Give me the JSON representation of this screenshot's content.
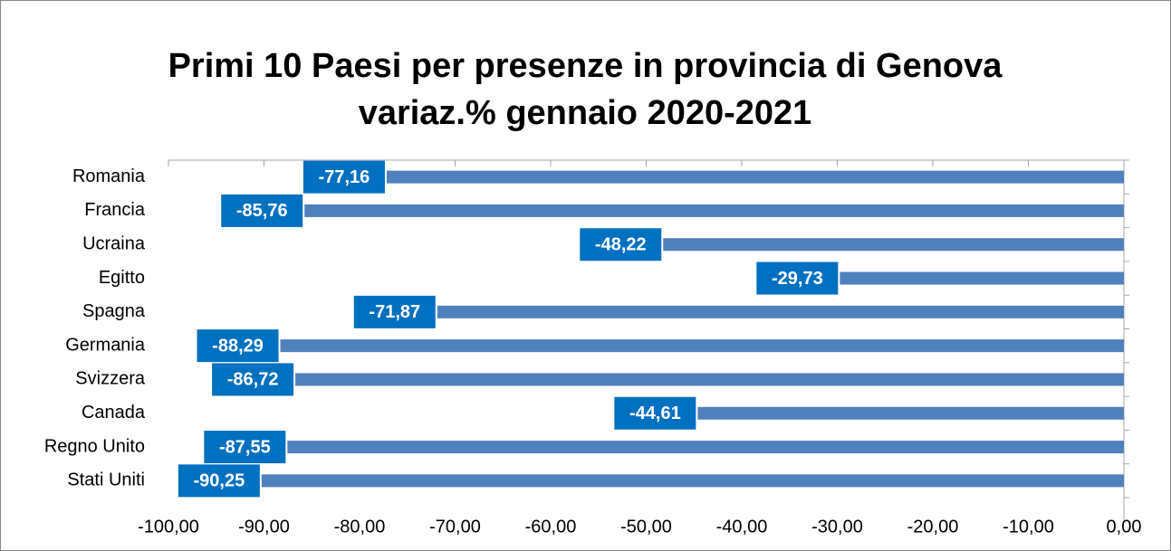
{
  "chart_data": {
    "type": "bar",
    "orientation": "horizontal",
    "title": "Primi 10 Paesi per presenze in provincia di Genova",
    "subtitle": "variaz.% gennaio 2020-2021",
    "categories": [
      "Romania",
      "Francia",
      "Ucraina",
      "Egitto",
      "Spagna",
      "Germania",
      "Svizzera",
      "Canada",
      "Regno Unito",
      "Stati Uniti"
    ],
    "values": [
      -77.16,
      -85.76,
      -48.22,
      -29.73,
      -71.87,
      -88.29,
      -86.72,
      -44.61,
      -87.55,
      -90.25
    ],
    "value_labels": [
      "-77,16",
      "-85,76",
      "-48,22",
      "-29,73",
      "-71,87",
      "-88,29",
      "-86,72",
      "-44,61",
      "-87,55",
      "-90,25"
    ],
    "color": "#4f81bd",
    "label_color": "#0070c0",
    "xlim": [
      -100,
      0
    ],
    "xticks": [
      {
        "value": -100,
        "label": "-100,00"
      },
      {
        "value": -90,
        "label": "-90,00"
      },
      {
        "value": -80,
        "label": "-80,00"
      },
      {
        "value": -70,
        "label": "-70,00"
      },
      {
        "value": -60,
        "label": "-60,00"
      },
      {
        "value": -50,
        "label": "-50,00"
      },
      {
        "value": -40,
        "label": "-40,00"
      },
      {
        "value": -30,
        "label": "-30,00"
      },
      {
        "value": -20,
        "label": "-20,00"
      },
      {
        "value": -10,
        "label": "-10,00"
      },
      {
        "value": 0,
        "label": "0,00"
      }
    ],
    "grid": false
  }
}
